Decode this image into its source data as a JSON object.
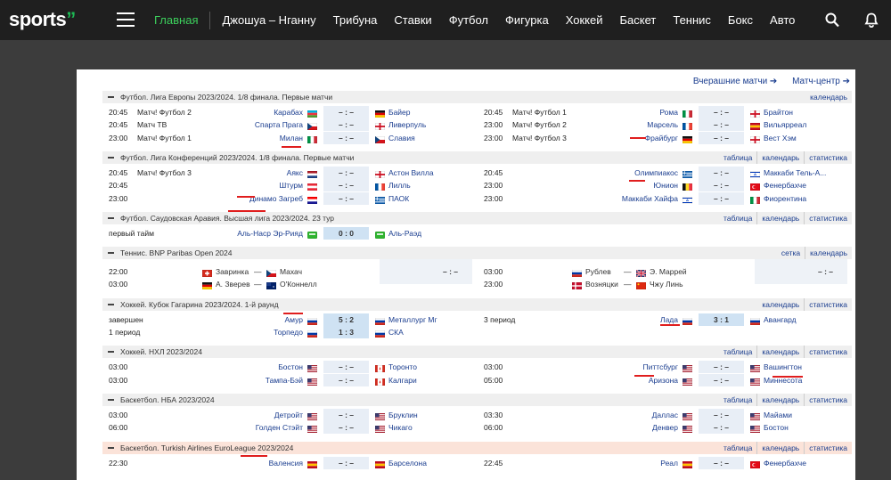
{
  "header": {
    "logo": "sports",
    "nav": [
      "Главная",
      "Джошуа – Нганну",
      "Трибуна",
      "Ставки",
      "Футбол",
      "Фигурка",
      "Хоккей",
      "Баскет",
      "Теннис",
      "Бокс",
      "Авто"
    ],
    "active_index": 0,
    "icons": [
      "menu-icon",
      "search-icon",
      "bell-icon"
    ]
  },
  "top_links": {
    "yesterday": "Вчерашние матчи ➔",
    "match_center": "Матч-центр ➔"
  },
  "colors": {
    "accent": "#3ccf5c",
    "link": "#1a3d8f",
    "underline": "#e01e1e",
    "section_bg": "#efefef",
    "highlight_bg": "#fbe3d9"
  },
  "sections": [
    {
      "title": "Футбол. Лига Европы 2023/2024. 1/8 финала. Первые матчи",
      "links": [
        "календарь"
      ],
      "rows": [
        [
          {
            "time": "20:45",
            "channel": "Матч! Футбол 2",
            "home": "Карабах",
            "hflag": "az",
            "score": "– : –",
            "aflag": "de",
            "away": "Байер"
          },
          {
            "time": "20:45",
            "channel": "Матч! Футбол 1",
            "home": "Рома",
            "hflag": "it",
            "score": "– : –",
            "aflag": "en",
            "away": "Брайтон"
          }
        ],
        [
          {
            "time": "20:45",
            "channel": "Матч ТВ",
            "home": "Спарта Прага",
            "hflag": "cz",
            "score": "– : –",
            "aflag": "en",
            "away": "Ливерпуль"
          },
          {
            "time": "23:00",
            "channel": "Матч! Футбол 2",
            "home": "Марсель",
            "hflag": "fr",
            "score": "– : –",
            "aflag": "es",
            "away": "Вильярреал"
          }
        ],
        [
          {
            "time": "23:00",
            "channel": "Матч! Футбол 1",
            "home": "Милан",
            "hflag": "it",
            "score": "– : –",
            "aflag": "cz",
            "away": "Славия"
          },
          {
            "time": "23:00",
            "channel": "Матч! Футбол 3",
            "home": "Фрайбург",
            "hflag": "de",
            "score": "– : –",
            "aflag": "en",
            "away": "Вест Хэм"
          }
        ]
      ]
    },
    {
      "title": "Футбол. Лига Конференций 2023/2024. 1/8 финала. Первые матчи",
      "links": [
        "таблица",
        "календарь",
        "статистика"
      ],
      "rows": [
        [
          {
            "time": "20:45",
            "channel": "Матч! Футбол 3",
            "home": "Аякс",
            "hflag": "nl",
            "score": "– : –",
            "aflag": "en",
            "away": "Астон Вилла"
          },
          {
            "time": "20:45",
            "channel": "",
            "home": "Олимпиакос",
            "hflag": "gr",
            "score": "– : –",
            "aflag": "il",
            "away": "Маккаби Тель-А..."
          }
        ],
        [
          {
            "time": "20:45",
            "channel": "",
            "home": "Штурм",
            "hflag": "at",
            "score": "– : –",
            "aflag": "fr",
            "away": "Лилль"
          },
          {
            "time": "23:00",
            "channel": "",
            "home": "Юнион",
            "hflag": "be",
            "score": "– : –",
            "aflag": "tr",
            "away": "Фенербахче"
          }
        ],
        [
          {
            "time": "23:00",
            "channel": "",
            "home": "Динамо Загреб",
            "hflag": "hr",
            "score": "– : –",
            "aflag": "gr",
            "away": "ПАОК"
          },
          {
            "time": "23:00",
            "channel": "",
            "home": "Маккаби Хайфа",
            "hflag": "il",
            "score": "– : –",
            "aflag": "it",
            "away": "Фиорентина"
          }
        ]
      ]
    },
    {
      "title": "Футбол. Саудовская Аравия. Высшая лига 2023/2024. 23 тур",
      "links": [
        "таблица",
        "календарь",
        "статистика"
      ],
      "rows": [
        [
          {
            "time": "первый тайм",
            "channel": "",
            "home": "Аль-Наср Эр-Рияд",
            "hflag": "green",
            "score": "0 : 0",
            "live": true,
            "aflag": "green",
            "away": "Аль-Раэд"
          },
          null
        ]
      ]
    },
    {
      "title": "Теннис. BNP Paribas Open 2024",
      "links": [
        "сетка",
        "календарь"
      ],
      "tennis": [
        [
          {
            "time": "22:00",
            "p1": "Завринка",
            "f1": "ch",
            "p2": "Махач",
            "f2": "cz",
            "score": "– : –"
          },
          {
            "time": "03:00",
            "p1": "Рублев",
            "f1": "ru",
            "p2": "Э. Маррей",
            "f2": "gb",
            "score": "– : –"
          }
        ],
        [
          {
            "time": "03:00",
            "p1": "А. Зверев",
            "f1": "de",
            "p2": "О'Коннелл",
            "f2": "au",
            "score": "– : –"
          },
          {
            "time": "23:00",
            "p1": "Возняцки",
            "f1": "dk",
            "p2": "Чжу Линь",
            "f2": "cn",
            "score": "– : –"
          }
        ]
      ]
    },
    {
      "title": "Хоккей. Кубок Гагарина 2023/2024. 1-й раунд",
      "links": [
        "календарь",
        "статистика"
      ],
      "rows": [
        [
          {
            "time": "завершен",
            "channel": "",
            "home": "Амур",
            "hflag": "ru",
            "score": "5 : 2",
            "live": true,
            "aflag": "ru",
            "away": "Металлург Мг"
          },
          {
            "time": "3 период",
            "channel": "",
            "home": "Лада",
            "hflag": "ru",
            "score": "3 : 1",
            "live": true,
            "aflag": "ru",
            "away": "Авангард"
          }
        ],
        [
          {
            "time": "1 период",
            "channel": "",
            "home": "Торпедо",
            "hflag": "ru",
            "score": "1 : 3",
            "live": true,
            "aflag": "ru",
            "away": "СКА"
          },
          null
        ]
      ]
    },
    {
      "title": "Хоккей. НХЛ 2023/2024",
      "links": [
        "таблица",
        "календарь",
        "статистика"
      ],
      "rows": [
        [
          {
            "time": "03:00",
            "channel": "",
            "home": "Бостон",
            "hflag": "us",
            "score": "– : –",
            "aflag": "ca",
            "away": "Торонто"
          },
          {
            "time": "03:00",
            "channel": "",
            "home": "Питтсбург",
            "hflag": "us",
            "score": "– : –",
            "aflag": "us",
            "away": "Вашингтон"
          }
        ],
        [
          {
            "time": "03:00",
            "channel": "",
            "home": "Тампа-Бэй",
            "hflag": "us",
            "score": "– : –",
            "aflag": "ca",
            "away": "Калгари"
          },
          {
            "time": "05:00",
            "channel": "",
            "home": "Аризона",
            "hflag": "us",
            "score": "– : –",
            "aflag": "us",
            "away": "Миннесота"
          }
        ]
      ]
    },
    {
      "title": "Баскетбол. НБА 2023/2024",
      "links": [
        "таблица",
        "календарь",
        "статистика"
      ],
      "rows": [
        [
          {
            "time": "03:00",
            "channel": "",
            "home": "Детройт",
            "hflag": "us",
            "score": "– : –",
            "aflag": "us",
            "away": "Бруклин"
          },
          {
            "time": "03:30",
            "channel": "",
            "home": "Даллас",
            "hflag": "us",
            "score": "– : –",
            "aflag": "us",
            "away": "Майами"
          }
        ],
        [
          {
            "time": "06:00",
            "channel": "",
            "home": "Голден Стэйт",
            "hflag": "us",
            "score": "– : –",
            "aflag": "us",
            "away": "Чикаго"
          },
          {
            "time": "06:00",
            "channel": "",
            "home": "Денвер",
            "hflag": "us",
            "score": "– : –",
            "aflag": "us",
            "away": "Бостон"
          }
        ]
      ]
    },
    {
      "title": "Баскетбол. Turkish Airlines EuroLeague 2023/2024",
      "links": [
        "таблица",
        "календарь",
        "статистика"
      ],
      "highlight": true,
      "rows": [
        [
          {
            "time": "22:30",
            "channel": "",
            "home": "Валенсия",
            "hflag": "es",
            "score": "– : –",
            "aflag": "es",
            "away": "Барселона"
          },
          {
            "time": "22:45",
            "channel": "",
            "home": "Реал",
            "hflag": "es",
            "score": "– : –",
            "aflag": "tr",
            "away": "Фенербахче"
          }
        ]
      ]
    }
  ]
}
